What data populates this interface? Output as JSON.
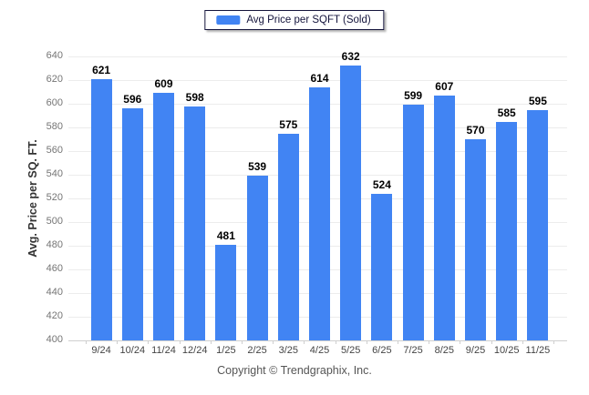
{
  "legend": {
    "label": "Avg Price per SQFT (Sold)"
  },
  "axis": {
    "y_title": "Avg. Price per SQ. FT."
  },
  "footer": {
    "text": "Copyright © Trendgraphix, Inc."
  },
  "colors": {
    "bar": "#4184f3",
    "grid": "#ececec",
    "baseline": "#cfcfcf",
    "value_label": "#000000",
    "x_label": "#444444",
    "y_label": "#757575",
    "legend_border": "#14143c"
  },
  "chart_data": {
    "type": "bar",
    "title": "",
    "legend_entries": [
      "Avg Price per SQFT (Sold)"
    ],
    "legend_position": "top-center",
    "categories": [
      "9/24",
      "10/24",
      "11/24",
      "12/24",
      "1/25",
      "2/25",
      "3/25",
      "4/25",
      "5/25",
      "6/25",
      "7/25",
      "8/25",
      "9/25",
      "10/25",
      "11/25"
    ],
    "values": [
      621,
      596,
      609,
      598,
      481,
      539,
      575,
      614,
      632,
      524,
      599,
      607,
      570,
      585,
      595
    ],
    "xlabel": "",
    "ylabel": "Avg. Price per SQ. FT.",
    "ylim": [
      400,
      640
    ],
    "ytick_step": 20,
    "grid": true
  }
}
